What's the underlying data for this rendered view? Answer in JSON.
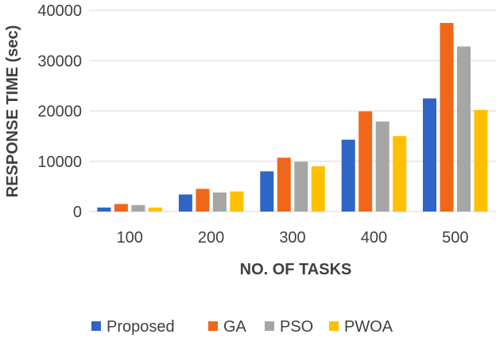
{
  "chart_data": {
    "type": "bar",
    "title": "",
    "xlabel": "NO. OF TASKS",
    "ylabel": "RESPONSE TIME (sec)",
    "categories": [
      "100",
      "200",
      "300",
      "400",
      "500"
    ],
    "ylim": [
      0,
      40000
    ],
    "yticks": [
      0,
      10000,
      20000,
      30000,
      40000
    ],
    "grid": true,
    "legend_position": "bottom",
    "series": [
      {
        "name": "Proposed",
        "color": "#2f65c6",
        "values": [
          800,
          3400,
          8000,
          14300,
          22500
        ]
      },
      {
        "name": "GA",
        "color": "#f0661a",
        "values": [
          1500,
          4500,
          10700,
          19900,
          37500
        ]
      },
      {
        "name": "PSO",
        "color": "#a6a6a6",
        "values": [
          1300,
          3800,
          9900,
          17900,
          32800
        ]
      },
      {
        "name": "PWOA",
        "color": "#ffc000",
        "values": [
          800,
          4000,
          9000,
          15000,
          20200
        ]
      }
    ]
  }
}
